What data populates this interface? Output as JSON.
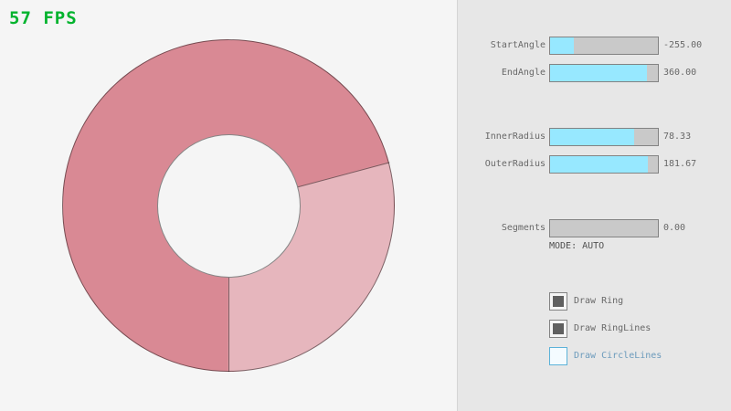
{
  "fps": {
    "label": "57 FPS"
  },
  "ring": {
    "overlap_color": "#d98994",
    "single_color": "#e6b6bd",
    "outline_color": "rgba(0,0,0,0.45)",
    "boundary_angles_deg": [
      75,
      180
    ]
  },
  "panel": {
    "sliders": [
      {
        "label": "StartAngle",
        "value": "-255.00",
        "fill_pct": 21.7
      },
      {
        "label": "EndAngle",
        "value": "360.00",
        "fill_pct": 90.0
      },
      {
        "label": "InnerRadius",
        "value": "78.33",
        "fill_pct": 78.3
      },
      {
        "label": "OuterRadius",
        "value": "181.67",
        "fill_pct": 90.8
      },
      {
        "label": "Segments",
        "value": "0.00",
        "fill_pct": 0
      }
    ],
    "mode_text": "MODE: AUTO",
    "checkboxes": [
      {
        "label": "Draw Ring",
        "checked": true,
        "focused": false
      },
      {
        "label": "Draw RingLines",
        "checked": true,
        "focused": false
      },
      {
        "label": "Draw CircleLines",
        "checked": false,
        "focused": true
      }
    ]
  },
  "colors": {
    "canvas_bg": "#f5f5f5",
    "panel_bg": "#e7e7e7",
    "panel_divider": "#d4d4d4",
    "fps_green": "#00b32d",
    "slider_track": "#c9c9c9",
    "slider_fill": "#97e8ff",
    "control_border": "#838383",
    "label_text": "#686868",
    "mode_text": "#505050",
    "focus_border": "#5bb2d9",
    "focus_text": "#6c9bbc",
    "focus_bg": "#f4fbff",
    "check_mark": "#606060"
  }
}
